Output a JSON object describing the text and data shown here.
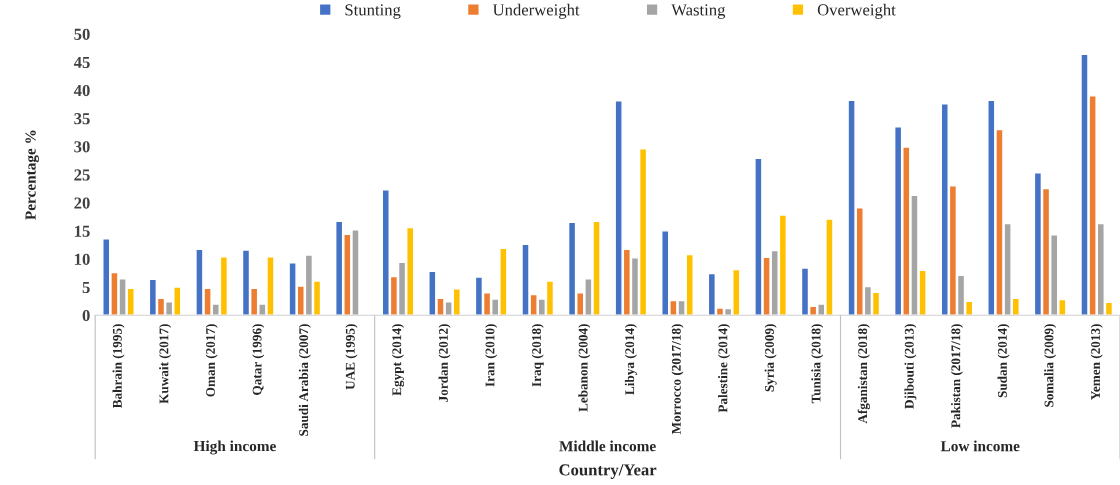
{
  "chart_data": {
    "type": "bar",
    "xlabel": "Country/Year",
    "ylabel": "Percentage %",
    "categories": [
      "Bahrain (1995)",
      "Kuwait (2017)",
      "Oman (2017)",
      "Qatar (1996)",
      "Saudi Arabia (2007)",
      "UAE (1995)",
      "Egypt (2014)",
      "Jordan (2012)",
      "Iran (2010)",
      "Iraq (2018)",
      "Lebanon (2004)",
      "Libya (2014)",
      "Morrocco (2017/18)",
      "Palestine (2014)",
      "Syria (2009)",
      "Tunisia (2018)",
      "Afganistan (2018)",
      "Djibouti (2013)",
      "Pakistan (2017/18)",
      "Sudan (2014)",
      "Somalia (2009)",
      "Yemen (2013)"
    ],
    "series": [
      {
        "name": "Stunting",
        "color": "#4472c4",
        "values": [
          13.6,
          6.4,
          11.7,
          11.6,
          9.3,
          16.7,
          22.3,
          7.8,
          6.8,
          12.6,
          16.5,
          38.1,
          15.0,
          7.4,
          27.9,
          8.4,
          38.2,
          33.5,
          37.6,
          38.2,
          25.3,
          46.4
        ]
      },
      {
        "name": "Underweight",
        "color": "#ed7d31",
        "values": [
          7.6,
          3.0,
          4.8,
          4.8,
          5.2,
          14.4,
          6.9,
          3.0,
          4.0,
          3.7,
          4.0,
          11.7,
          2.6,
          1.3,
          10.3,
          1.6,
          19.1,
          29.9,
          23.0,
          33.0,
          22.5,
          39.0
        ]
      },
      {
        "name": "Wasting",
        "color": "#a5a5a5",
        "values": [
          6.5,
          2.4,
          2.0,
          2.0,
          10.7,
          15.2,
          9.4,
          2.4,
          2.9,
          2.9,
          6.5,
          10.2,
          2.6,
          1.2,
          11.5,
          2.0,
          5.1,
          21.3,
          7.1,
          16.3,
          14.3,
          16.3
        ]
      },
      {
        "name": "Overweight",
        "color": "#ffc000",
        "values": [
          4.8,
          5.0,
          10.4,
          10.4,
          6.1,
          null,
          15.6,
          4.7,
          11.9,
          6.1,
          16.7,
          29.6,
          10.8,
          8.1,
          17.8,
          17.1,
          4.1,
          8.0,
          2.5,
          3.0,
          2.8,
          2.3
        ]
      }
    ],
    "ylim": [
      0,
      50
    ],
    "yticks": [
      0,
      5,
      10,
      15,
      20,
      25,
      30,
      35,
      40,
      45,
      50
    ],
    "grid": false,
    "legend": "top",
    "annotations": [
      "High income",
      "Middle income",
      "Low income"
    ]
  }
}
